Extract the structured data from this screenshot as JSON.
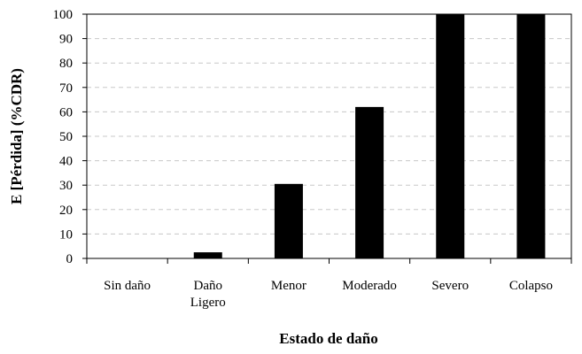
{
  "chart_data": {
    "type": "bar",
    "categories": [
      "Sin daño",
      "Daño\nLigero",
      "Menor",
      "Moderado",
      "Severo",
      "Colapso"
    ],
    "values": [
      0,
      2.5,
      30.5,
      62,
      100,
      100
    ],
    "color": "#000000",
    "ylim": [
      0,
      100
    ],
    "yticks": [
      0,
      10,
      20,
      30,
      40,
      50,
      60,
      70,
      80,
      90,
      100
    ],
    "grid": true,
    "xlabel": "Estado de daño",
    "ylabel": "E [Pérdida] (%CDR)"
  }
}
